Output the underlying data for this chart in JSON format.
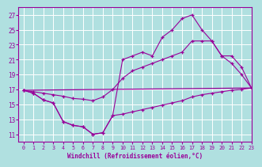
{
  "background_color": "#b0e0e0",
  "grid_color": "#ffffff",
  "line_color": "#990099",
  "x_label": "Windchill (Refroidissement éolien,°C)",
  "ylim": [
    10,
    28
  ],
  "xlim": [
    -0.5,
    23
  ],
  "yticks": [
    11,
    13,
    15,
    17,
    19,
    21,
    23,
    25,
    27
  ],
  "xticks": [
    0,
    1,
    2,
    3,
    4,
    5,
    6,
    7,
    8,
    9,
    10,
    11,
    12,
    13,
    14,
    15,
    16,
    17,
    18,
    19,
    20,
    21,
    22,
    23
  ],
  "line1_x": [
    0,
    1,
    2,
    3,
    4,
    5,
    6,
    7,
    8,
    9,
    10,
    11,
    12,
    13,
    14,
    15,
    16,
    17,
    18,
    19,
    20,
    21,
    22,
    23
  ],
  "line1_y": [
    16.9,
    16.5,
    15.6,
    15.2,
    12.7,
    12.2,
    12.0,
    11.0,
    11.2,
    13.5,
    13.7,
    14.0,
    14.3,
    14.6,
    14.9,
    15.2,
    15.5,
    16.0,
    16.3,
    16.5,
    16.7,
    16.9,
    17.0,
    17.2
  ],
  "line2_x": [
    0,
    1,
    2,
    3,
    4,
    5,
    6,
    7,
    8,
    9,
    10,
    11,
    12,
    13,
    14,
    15,
    16,
    17,
    18,
    19,
    20,
    21,
    22,
    23
  ],
  "line2_y": [
    16.9,
    16.5,
    15.6,
    15.2,
    12.7,
    12.2,
    12.0,
    11.0,
    11.2,
    13.5,
    21.0,
    21.5,
    22.0,
    21.5,
    24.0,
    25.0,
    26.5,
    27.0,
    25.0,
    23.5,
    21.5,
    20.5,
    19.0,
    17.2
  ],
  "line3_x": [
    0,
    1,
    2,
    3,
    4,
    5,
    6,
    7,
    8,
    9,
    10,
    11,
    12,
    13,
    14,
    15,
    16,
    17,
    18,
    19,
    20,
    21,
    22,
    23
  ],
  "line3_y": [
    16.9,
    16.7,
    16.5,
    16.3,
    16.1,
    15.8,
    15.7,
    15.5,
    16.0,
    17.0,
    18.5,
    19.5,
    20.0,
    20.5,
    21.0,
    21.5,
    22.0,
    23.5,
    23.5,
    23.5,
    21.5,
    21.5,
    20.0,
    17.2
  ],
  "line4_x": [
    0,
    23
  ],
  "line4_y": [
    16.9,
    17.2
  ]
}
